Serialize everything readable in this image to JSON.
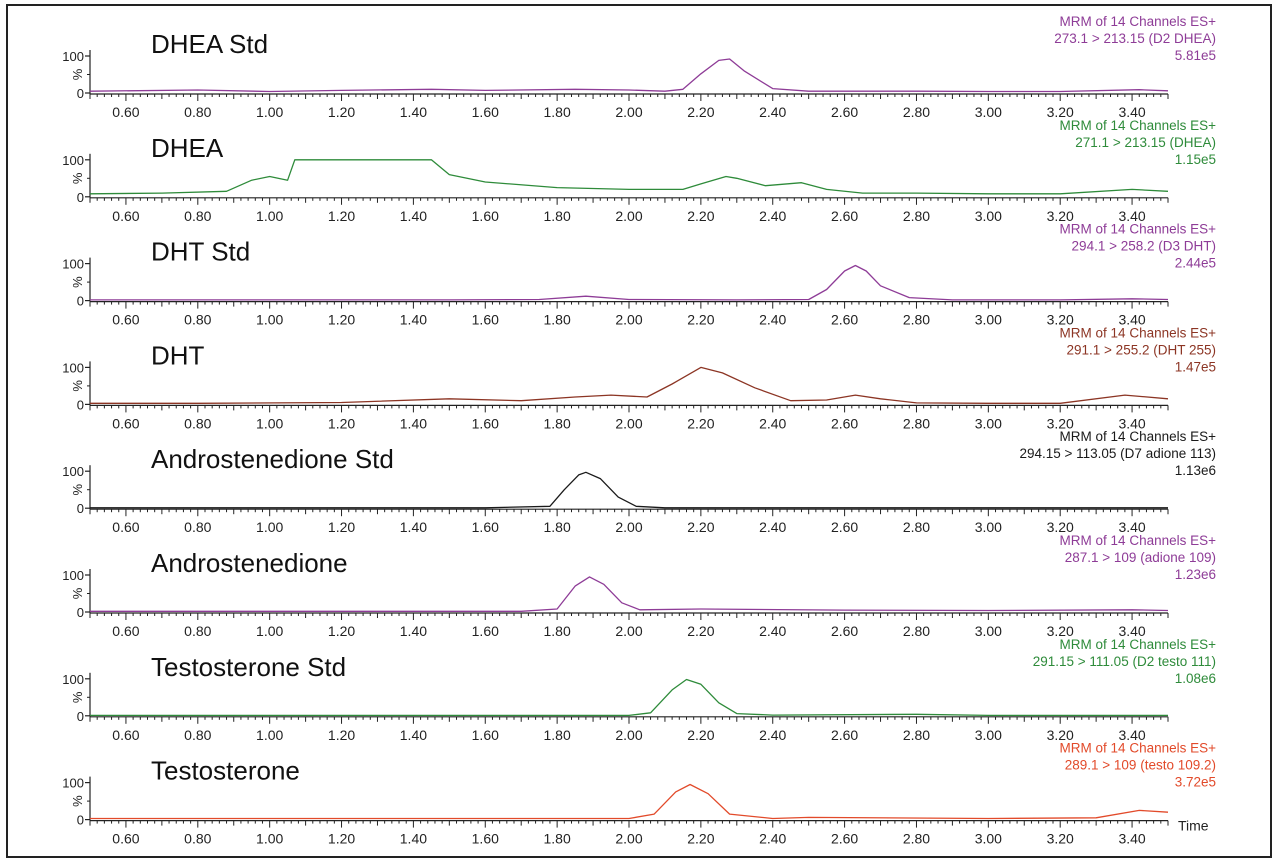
{
  "chart_data": {
    "type": "line",
    "x_ticks": [
      "0.60",
      "0.80",
      "1.00",
      "1.20",
      "1.40",
      "1.60",
      "1.80",
      "2.00",
      "2.20",
      "2.40",
      "2.60",
      "2.80",
      "3.00",
      "3.20",
      "3.40"
    ],
    "xlim": [
      0.5,
      3.5
    ],
    "ylim": [
      0,
      100
    ],
    "y_ticks": [
      "100",
      "0"
    ],
    "y_unit_label": "%",
    "x_axis_label": "Time",
    "panels": [
      {
        "title": "DHEA Std",
        "color": "#8e3c97",
        "info": [
          "MRM of 14 Channels ES+",
          "273.1 > 213.15 (D2 DHEA)",
          "5.81e5"
        ],
        "x": [
          0.5,
          0.8,
          1.0,
          1.2,
          1.45,
          1.6,
          1.85,
          2.0,
          2.1,
          2.15,
          2.2,
          2.25,
          2.28,
          2.32,
          2.4,
          2.5,
          2.6,
          2.8,
          3.0,
          3.2,
          3.42,
          3.5
        ],
        "y": [
          5,
          8,
          4,
          7,
          10,
          7,
          10,
          8,
          5,
          10,
          52,
          88,
          92,
          60,
          12,
          5,
          5,
          5,
          4,
          4,
          9,
          6
        ]
      },
      {
        "title": "DHEA",
        "color": "#2e8b3a",
        "info": [
          "MRM of 14 Channels ES+",
          "271.1 > 213.15 (DHEA)",
          "1.15e5"
        ],
        "x": [
          0.5,
          0.7,
          0.88,
          0.95,
          1.0,
          1.05,
          1.07,
          1.2,
          1.45,
          1.5,
          1.6,
          1.8,
          2.0,
          2.15,
          2.2,
          2.27,
          2.3,
          2.38,
          2.48,
          2.55,
          2.65,
          2.8,
          3.0,
          3.2,
          3.4,
          3.5
        ],
        "y": [
          8,
          10,
          15,
          45,
          55,
          45,
          100,
          100,
          100,
          60,
          40,
          25,
          20,
          20,
          35,
          55,
          50,
          30,
          38,
          20,
          10,
          10,
          8,
          8,
          20,
          15
        ]
      },
      {
        "title": "DHT Std",
        "color": "#8e3c97",
        "info": [
          "MRM of 14 Channels ES+",
          "294.1 > 258.2 (D3 DHT)",
          "2.44e5"
        ],
        "x": [
          0.5,
          1.0,
          1.5,
          1.75,
          1.88,
          2.0,
          2.3,
          2.5,
          2.55,
          2.6,
          2.63,
          2.66,
          2.7,
          2.78,
          2.9,
          3.2,
          3.4,
          3.5
        ],
        "y": [
          2,
          2,
          2,
          3,
          12,
          3,
          2,
          3,
          30,
          80,
          95,
          80,
          40,
          8,
          2,
          2,
          5,
          3
        ]
      },
      {
        "title": "DHT",
        "color": "#8c3524",
        "info": [
          "MRM of 14 Channels ES+",
          "291.1 > 255.2 (DHT 255)",
          "1.47e5"
        ],
        "x": [
          0.5,
          0.8,
          1.2,
          1.5,
          1.7,
          1.85,
          1.95,
          2.05,
          2.12,
          2.2,
          2.26,
          2.35,
          2.45,
          2.55,
          2.63,
          2.7,
          2.8,
          3.0,
          3.2,
          3.38,
          3.5
        ],
        "y": [
          3,
          3,
          5,
          15,
          10,
          20,
          25,
          20,
          55,
          100,
          85,
          45,
          10,
          12,
          25,
          15,
          4,
          3,
          3,
          25,
          15
        ]
      },
      {
        "title": "Androstenedione Std",
        "color": "#1a1a1a",
        "info": [
          "MRM of 14 Channels ES+",
          "294.15 > 113.05 (D7 adione 113)",
          "1.13e6"
        ],
        "x": [
          0.5,
          1.6,
          1.78,
          1.82,
          1.86,
          1.88,
          1.92,
          1.97,
          2.02,
          2.1,
          2.5,
          3.5
        ],
        "y": [
          1,
          1,
          5,
          50,
          90,
          97,
          80,
          30,
          5,
          1,
          1,
          1
        ]
      },
      {
        "title": "Androstenedione",
        "color": "#8e3c97",
        "info": [
          "MRM of 14 Channels ES+",
          "287.1 > 109 (adione 109)",
          "1.23e6"
        ],
        "x": [
          0.5,
          1.7,
          1.8,
          1.85,
          1.89,
          1.93,
          1.98,
          2.03,
          2.2,
          2.6,
          3.0,
          3.4,
          3.5
        ],
        "y": [
          2,
          2,
          8,
          70,
          95,
          75,
          25,
          6,
          8,
          5,
          4,
          6,
          4
        ]
      },
      {
        "title": "Testosterone Std",
        "color": "#2e8b3a",
        "info": [
          "MRM of 14 Channels ES+",
          "291.15 > 111.05 (D2 testo 111)",
          "1.08e6"
        ],
        "x": [
          0.5,
          2.0,
          2.06,
          2.12,
          2.16,
          2.2,
          2.25,
          2.3,
          2.4,
          2.8,
          3.0,
          3.5
        ],
        "y": [
          1,
          1,
          8,
          70,
          98,
          85,
          35,
          6,
          2,
          4,
          1,
          1
        ]
      },
      {
        "title": "Testosterone",
        "color": "#e24a2a",
        "info": [
          "MRM of 14 Channels ES+",
          "289.1 > 109 (testo 109.2)",
          "3.72e5"
        ],
        "x": [
          0.5,
          1.5,
          2.0,
          2.07,
          2.13,
          2.17,
          2.22,
          2.28,
          2.4,
          2.5,
          3.0,
          3.3,
          3.42,
          3.5
        ],
        "y": [
          3,
          3,
          3,
          15,
          75,
          95,
          70,
          15,
          3,
          6,
          3,
          5,
          25,
          20
        ]
      }
    ]
  }
}
